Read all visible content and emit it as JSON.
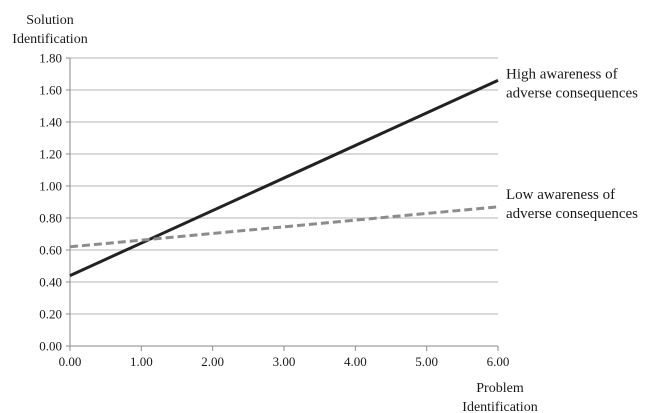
{
  "chart_data": {
    "type": "line",
    "title": "",
    "xlabel": [
      "Problem",
      "Identification"
    ],
    "ylabel": [
      "Solution",
      "Identification"
    ],
    "xlim": [
      0,
      6
    ],
    "ylim": [
      0,
      1.8
    ],
    "x_ticks": [
      "0.00",
      "1.00",
      "2.00",
      "3.00",
      "4.00",
      "5.00",
      "6.00"
    ],
    "y_ticks": [
      "0.00",
      "0.20",
      "0.40",
      "0.60",
      "0.80",
      "1.00",
      "1.20",
      "1.40",
      "1.60",
      "1.80"
    ],
    "grid": "horizontal",
    "series": [
      {
        "name": [
          "High awareness of",
          "adverse consequences"
        ],
        "x": [
          0,
          6
        ],
        "y": [
          0.44,
          1.66
        ],
        "color": "#222222",
        "style": "solid"
      },
      {
        "name": [
          "Low awareness of",
          "adverse consequences"
        ],
        "x": [
          0,
          6
        ],
        "y": [
          0.62,
          0.87
        ],
        "color": "#8c8c8c",
        "style": "dashed"
      }
    ]
  }
}
